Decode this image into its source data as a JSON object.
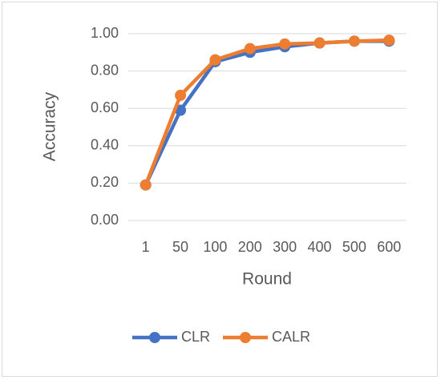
{
  "chart_data": {
    "type": "line",
    "x_label": "Round",
    "y_label": "Accuracy",
    "categories": [
      "1",
      "50",
      "100",
      "200",
      "300",
      "400",
      "500",
      "600"
    ],
    "series": [
      {
        "name": "CLR",
        "color": "#4472c4",
        "values": [
          0.19,
          0.59,
          0.85,
          0.9,
          0.93,
          0.95,
          0.96,
          0.96
        ]
      },
      {
        "name": "CALR",
        "color": "#ed7d31",
        "values": [
          0.19,
          0.67,
          0.86,
          0.92,
          0.945,
          0.95,
          0.96,
          0.965
        ]
      }
    ],
    "ylim": [
      0,
      1
    ],
    "yticks": [
      {
        "value": 0,
        "label": "0.00"
      },
      {
        "value": 0.2,
        "label": "0.20"
      },
      {
        "value": 0.4,
        "label": "0.40"
      },
      {
        "value": 0.6,
        "label": "0.60"
      },
      {
        "value": 0.8,
        "label": "0.80"
      },
      {
        "value": 1,
        "label": "1.00"
      }
    ],
    "grid": true,
    "legend": "bottom"
  }
}
